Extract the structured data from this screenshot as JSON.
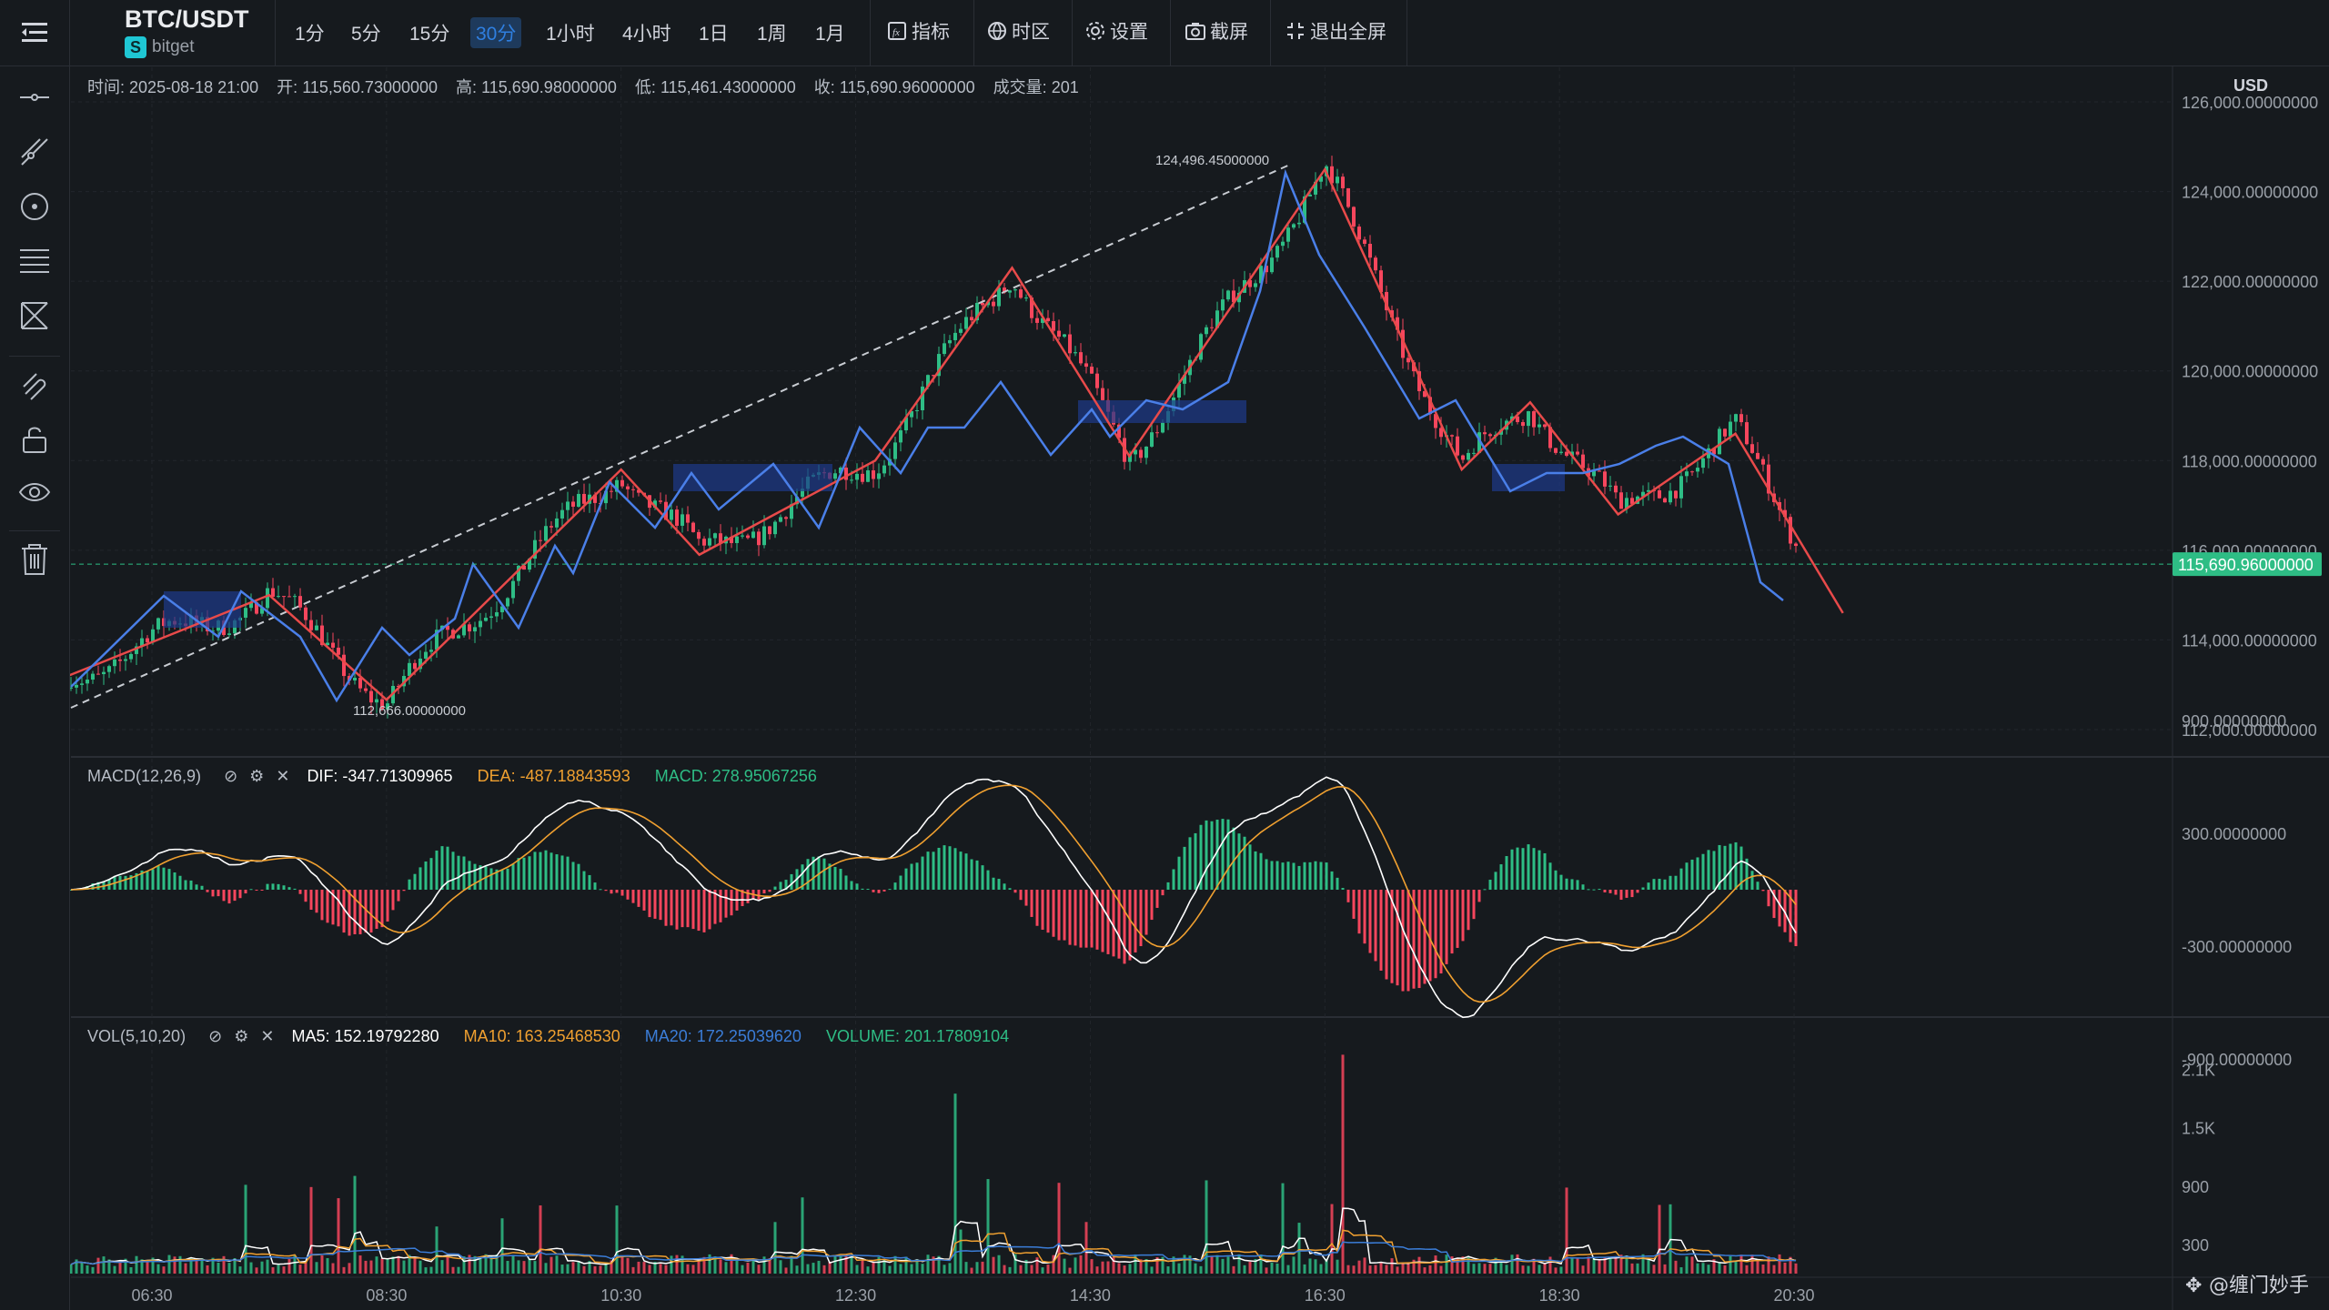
{
  "header": {
    "symbol": "BTC/USDT",
    "exchange": "bitget",
    "intervals": [
      "1分",
      "5分",
      "15分",
      "30分",
      "1小时",
      "4小时",
      "1日",
      "1周",
      "1月"
    ],
    "active_interval": "30分",
    "tools": [
      {
        "label": "指标",
        "icon": "indicator-icon"
      },
      {
        "label": "时区",
        "icon": "globe-icon"
      },
      {
        "label": "设置",
        "icon": "gear-icon"
      },
      {
        "label": "截屏",
        "icon": "camera-icon"
      },
      {
        "label": "退出全屏",
        "icon": "exit-fullscreen-icon"
      }
    ]
  },
  "leftbar": {
    "tools": [
      "horizontal-line-icon",
      "trend-line-icon",
      "circle-tool-icon",
      "fib-lines-icon",
      "pattern-icon",
      "magnet-icon",
      "unlock-icon",
      "eye-icon",
      "trash-icon"
    ]
  },
  "ohlc": {
    "time_label": "时间:",
    "time": "2025-08-18 21:00",
    "open_label": "开:",
    "open": "115,560.73000000",
    "high_label": "高:",
    "high": "115,690.98000000",
    "low_label": "低:",
    "low": "115,461.43000000",
    "close_label": "收:",
    "close": "115,690.96000000",
    "volume_label": "成交量:",
    "volume": "201"
  },
  "price_axis": {
    "currency": "USD",
    "ticks": [
      "126,000.00000000",
      "124,000.00000000",
      "122,000.00000000",
      "120,000.00000000",
      "118,000.00000000",
      "116,000.00000000",
      "114,000.00000000",
      "112,000.00000000"
    ],
    "current_price": "115,690.96000000"
  },
  "macd": {
    "title": "MACD(12,26,9)",
    "dif": "DIF: -347.71309965",
    "dea": "DEA: -487.18843593",
    "macd": "MACD: 278.95067256",
    "ticks": [
      "900.00000000",
      "300.00000000",
      "-300.00000000",
      "-900.00000000"
    ]
  },
  "vol": {
    "title": "VOL(5,10,20)",
    "ma5": "MA5: 152.19792280",
    "ma10": "MA10: 163.25468530",
    "ma20": "MA20: 172.25039620",
    "volume": "VOLUME: 201.17809104",
    "ticks": [
      "2.1K",
      "1.5K",
      "900",
      "300"
    ]
  },
  "time_axis": [
    "06:30",
    "08:30",
    "10:30",
    "12:30",
    "14:30",
    "16:30",
    "18:30",
    "20:30"
  ],
  "annotations": {
    "high_label": "124,496.45000000",
    "low_label": "112,666.00000000"
  },
  "watermark": "@缠门妙手",
  "colors": {
    "bg": "#161a1e",
    "up": "#2ebd85",
    "down": "#f6465d",
    "dif": "#ffffff",
    "dea": "#f0a030",
    "zigzag_red": "#e84a4a",
    "zigzag_blue": "#4a7fe8",
    "zone": "#1e3a8a",
    "ma5": "#ffffff",
    "ma10": "#f0a030",
    "ma20": "#3b7dd8"
  },
  "chart_data": [
    {
      "type": "candlestick",
      "title": "BTC/USDT 30m",
      "ylim": [
        111500,
        126500
      ],
      "x": [
        "06:30",
        "08:30",
        "10:30",
        "12:30",
        "14:30",
        "16:30",
        "18:30",
        "20:30"
      ],
      "key_levels": {
        "high": 124496.45,
        "low": 112666.0,
        "current": 115690.96
      },
      "zigzag_pivots_red": [
        {
          "time": "05:30",
          "price": 112900
        },
        {
          "time": "07:30",
          "price": 115000
        },
        {
          "time": "08:30",
          "price": 112666
        },
        {
          "time": "10:30",
          "price": 117800
        },
        {
          "time": "11:10",
          "price": 115900
        },
        {
          "time": "12:40",
          "price": 118000
        },
        {
          "time": "13:50",
          "price": 122300
        },
        {
          "time": "14:50",
          "price": 118100
        },
        {
          "time": "16:30",
          "price": 124496.45
        },
        {
          "time": "17:40",
          "price": 117800
        },
        {
          "time": "18:15",
          "price": 119300
        },
        {
          "time": "19:00",
          "price": 116800
        },
        {
          "time": "20:00",
          "price": 118600
        },
        {
          "time": "20:55",
          "price": 114600
        }
      ]
    },
    {
      "type": "line",
      "title": "MACD(12,26,9)",
      "ylim": [
        -1200,
        1100
      ],
      "series": [
        {
          "name": "DIF",
          "last": -347.71309965
        },
        {
          "name": "DEA",
          "last": -487.18843593
        },
        {
          "name": "MACD",
          "last": 278.95067256
        }
      ]
    },
    {
      "type": "bar",
      "title": "VOL(5,10,20)",
      "ylim": [
        0,
        2200
      ],
      "series": [
        {
          "name": "MA5",
          "last": 152.1979228
        },
        {
          "name": "MA10",
          "last": 163.2546853
        },
        {
          "name": "MA20",
          "last": 172.2503962
        },
        {
          "name": "VOLUME",
          "last": 201.17809104
        }
      ]
    }
  ]
}
